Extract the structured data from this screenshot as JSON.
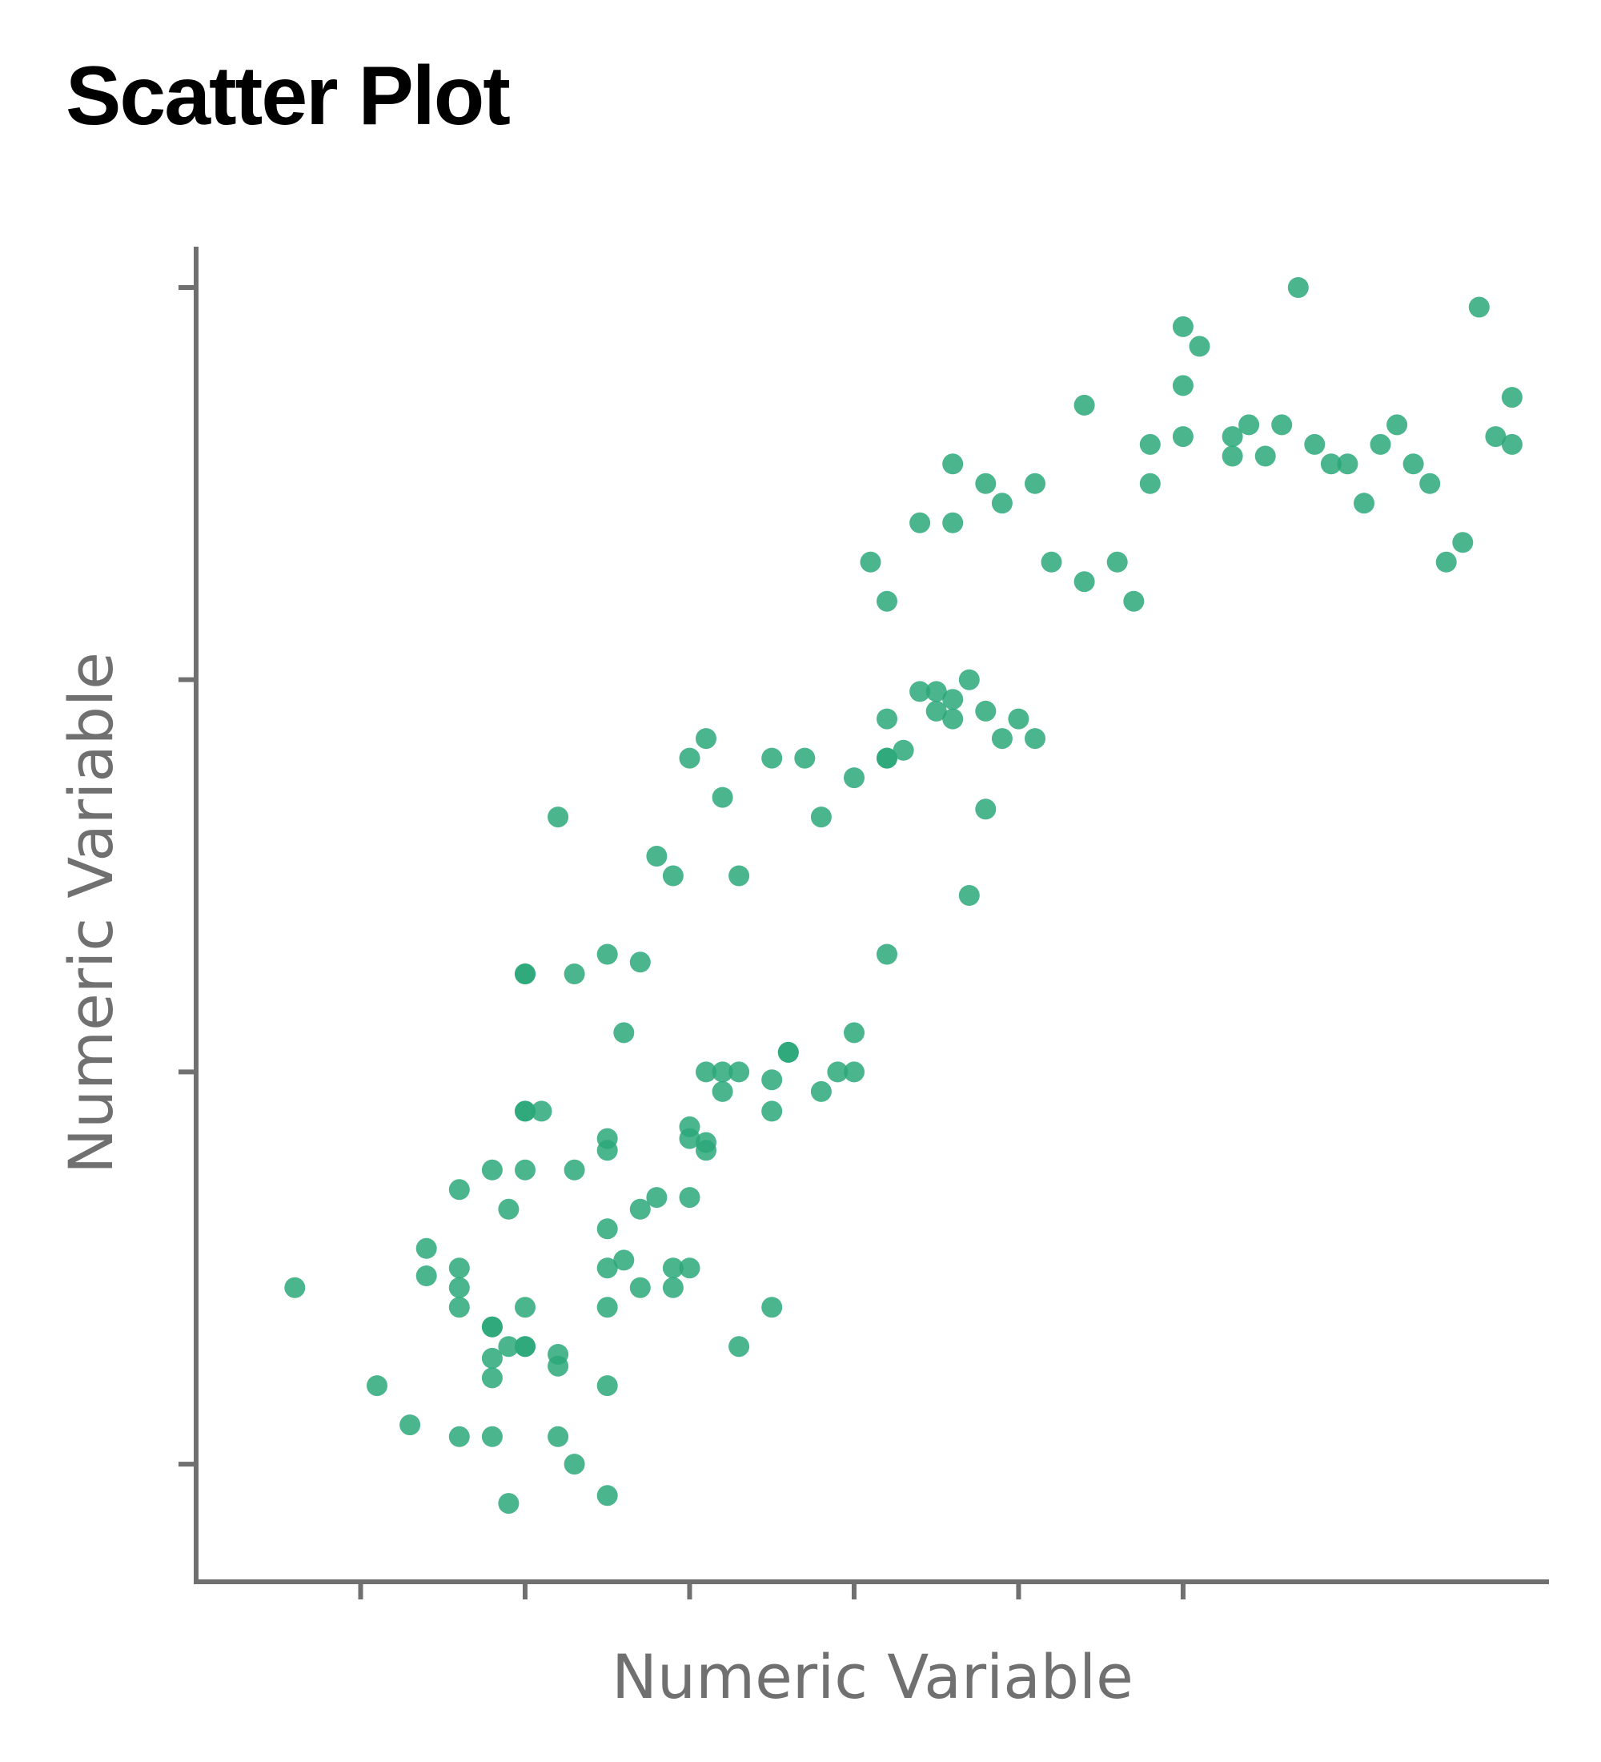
{
  "chart_data": {
    "type": "scatter",
    "title": "Scatter Plot",
    "xlabel": "Numeric Variable",
    "ylabel": "Numeric Variable",
    "xlim": [
      4.0,
      8.1
    ],
    "ylim": [
      1.7,
      5.1
    ],
    "x_ticks": [
      4.5,
      5.0,
      5.5,
      6.0,
      6.5,
      7.0
    ],
    "y_ticks": [
      2.0,
      3.0,
      4.0,
      5.0
    ],
    "tick_labels_visible": false,
    "grid": false,
    "legend": "none",
    "color": "#2ba87a",
    "points": [
      [
        4.3,
        2.45
      ],
      [
        4.55,
        2.2
      ],
      [
        4.65,
        2.1
      ],
      [
        4.8,
        2.07
      ],
      [
        4.9,
        2.07
      ],
      [
        4.95,
        1.9
      ],
      [
        5.1,
        2.07
      ],
      [
        5.15,
        2.0
      ],
      [
        5.25,
        1.92
      ],
      [
        5.0,
        2.3
      ],
      [
        5.0,
        2.3
      ],
      [
        4.9,
        2.35
      ],
      [
        5.0,
        2.4
      ],
      [
        5.1,
        2.28
      ],
      [
        5.1,
        2.25
      ],
      [
        5.25,
        2.2
      ],
      [
        4.95,
        2.3
      ],
      [
        4.9,
        2.22
      ],
      [
        4.9,
        2.27
      ],
      [
        4.9,
        2.35
      ],
      [
        4.8,
        2.4
      ],
      [
        4.7,
        2.55
      ],
      [
        4.7,
        2.48
      ],
      [
        4.8,
        2.45
      ],
      [
        4.8,
        2.5
      ],
      [
        4.9,
        2.75
      ],
      [
        4.8,
        2.7
      ],
      [
        4.95,
        2.65
      ],
      [
        5.0,
        2.75
      ],
      [
        5.15,
        2.75
      ],
      [
        5.25,
        2.8
      ],
      [
        5.25,
        2.83
      ],
      [
        5.25,
        2.6
      ],
      [
        5.25,
        2.5
      ],
      [
        5.3,
        2.52
      ],
      [
        5.35,
        2.65
      ],
      [
        5.4,
        2.68
      ],
      [
        5.35,
        2.45
      ],
      [
        5.25,
        2.4
      ],
      [
        5.45,
        2.5
      ],
      [
        5.45,
        2.45
      ],
      [
        5.5,
        2.5
      ],
      [
        5.5,
        2.68
      ],
      [
        5.5,
        2.83
      ],
      [
        5.5,
        2.86
      ],
      [
        5.55,
        2.8
      ],
      [
        5.55,
        2.82
      ],
      [
        5.65,
        2.3
      ],
      [
        5.75,
        2.4
      ],
      [
        5.75,
        2.9
      ],
      [
        5.75,
        2.98
      ],
      [
        5.6,
        2.95
      ],
      [
        5.6,
        3.0
      ],
      [
        5.55,
        3.0
      ],
      [
        5.65,
        3.0
      ],
      [
        5.8,
        3.05
      ],
      [
        5.8,
        3.05
      ],
      [
        5.9,
        2.95
      ],
      [
        5.95,
        3.0
      ],
      [
        6.0,
        3.1
      ],
      [
        6.0,
        3.0
      ],
      [
        5.0,
        2.9
      ],
      [
        5.0,
        2.9
      ],
      [
        5.05,
        2.9
      ],
      [
        5.0,
        3.25
      ],
      [
        5.0,
        3.25
      ],
      [
        5.15,
        3.25
      ],
      [
        5.25,
        3.3
      ],
      [
        5.3,
        3.1
      ],
      [
        5.35,
        3.28
      ],
      [
        5.45,
        3.5
      ],
      [
        5.5,
        3.8
      ],
      [
        5.6,
        3.7
      ],
      [
        5.1,
        3.65
      ],
      [
        5.4,
        3.55
      ],
      [
        5.65,
        3.5
      ],
      [
        5.55,
        3.85
      ],
      [
        5.75,
        3.8
      ],
      [
        5.85,
        3.8
      ],
      [
        5.9,
        3.65
      ],
      [
        6.0,
        3.75
      ],
      [
        6.1,
        3.8
      ],
      [
        6.15,
        3.82
      ],
      [
        6.1,
        3.9
      ],
      [
        6.1,
        3.8
      ],
      [
        6.1,
        3.3
      ],
      [
        6.35,
        3.45
      ],
      [
        6.4,
        3.67
      ],
      [
        6.3,
        3.9
      ],
      [
        6.25,
        3.92
      ],
      [
        6.25,
        3.97
      ],
      [
        6.2,
        3.97
      ],
      [
        6.3,
        3.95
      ],
      [
        6.35,
        4.0
      ],
      [
        6.4,
        3.92
      ],
      [
        6.45,
        3.85
      ],
      [
        6.5,
        3.9
      ],
      [
        6.55,
        3.85
      ],
      [
        6.05,
        4.3
      ],
      [
        6.1,
        4.2
      ],
      [
        6.2,
        4.4
      ],
      [
        6.3,
        4.4
      ],
      [
        6.3,
        4.55
      ],
      [
        6.4,
        4.5
      ],
      [
        6.45,
        4.45
      ],
      [
        6.55,
        4.5
      ],
      [
        6.6,
        4.3
      ],
      [
        6.7,
        4.7
      ],
      [
        6.7,
        4.25
      ],
      [
        6.8,
        4.3
      ],
      [
        6.85,
        4.2
      ],
      [
        6.9,
        4.6
      ],
      [
        6.9,
        4.5
      ],
      [
        7.0,
        4.75
      ],
      [
        7.0,
        4.9
      ],
      [
        7.0,
        4.62
      ],
      [
        7.05,
        4.85
      ],
      [
        7.15,
        4.62
      ],
      [
        7.15,
        4.57
      ],
      [
        7.2,
        4.65
      ],
      [
        7.25,
        4.57
      ],
      [
        7.3,
        4.65
      ],
      [
        7.35,
        5.0
      ],
      [
        7.4,
        4.6
      ],
      [
        7.45,
        4.55
      ],
      [
        7.5,
        4.55
      ],
      [
        7.55,
        4.45
      ],
      [
        7.6,
        4.6
      ],
      [
        7.65,
        4.65
      ],
      [
        7.7,
        4.55
      ],
      [
        7.75,
        4.5
      ],
      [
        7.8,
        4.3
      ],
      [
        7.85,
        4.35
      ],
      [
        7.9,
        4.95
      ],
      [
        7.95,
        4.62
      ],
      [
        8.0,
        4.72
      ],
      [
        8.0,
        4.6
      ]
    ]
  }
}
